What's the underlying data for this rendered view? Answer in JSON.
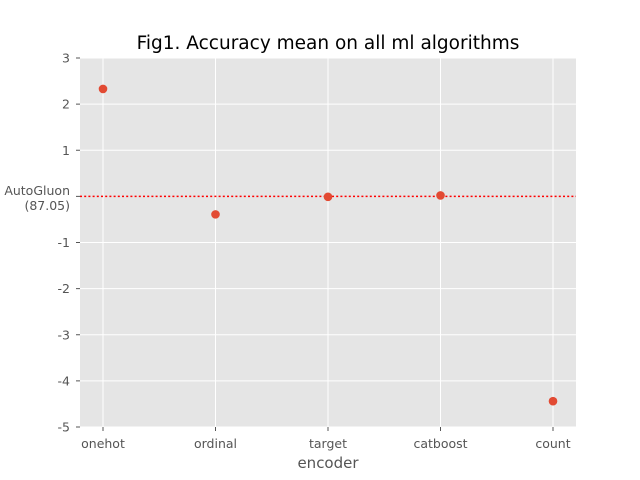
{
  "chart_data": {
    "type": "scatter",
    "title": "Fig1. Accuracy mean on all ml algorithms",
    "xlabel": "encoder",
    "ylabel": "",
    "categories": [
      "onehot",
      "ordinal",
      "target",
      "catboost",
      "count"
    ],
    "values": [
      2.33,
      -0.39,
      -0.01,
      0.02,
      -4.44
    ],
    "ylim": [
      -5,
      3
    ],
    "yticks": [
      -5,
      -4,
      -3,
      -2,
      -1,
      1,
      2,
      3
    ],
    "ytick_labels": [
      "-5",
      "-4",
      "-3",
      "-2",
      "-1",
      "1",
      "2",
      "3"
    ],
    "baseline": {
      "value": 0,
      "label_line1": "AutoGluon",
      "label_line2": "(87.05)",
      "color": "#ff0000",
      "style": "dotted"
    },
    "grid": true,
    "legend": "none",
    "colors": {
      "marker": "#e24a33",
      "plot_bg": "#e5e5e5",
      "grid": "#ffffff"
    }
  }
}
